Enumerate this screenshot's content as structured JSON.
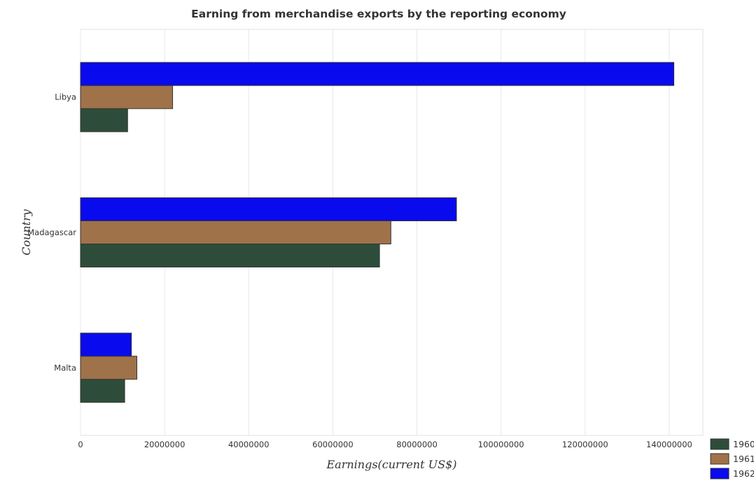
{
  "chart_data": {
    "type": "bar",
    "orientation": "horizontal",
    "title": "Earning from merchandise exports by the reporting economy",
    "xlabel": "Earnings(current US$)",
    "ylabel": "Country",
    "categories": [
      "Libya",
      "Madagascar",
      "Malta"
    ],
    "series": [
      {
        "name": "1960",
        "color": "#2d4d3a",
        "values": [
          11200000,
          71100000,
          10500000
        ]
      },
      {
        "name": "1961",
        "color": "#a0724a",
        "values": [
          21900000,
          73800000,
          13400000
        ]
      },
      {
        "name": "1962",
        "color": "#0a0aee",
        "values": [
          141100000,
          89400000,
          12100000
        ]
      }
    ],
    "xlim": [
      0,
      148000000
    ],
    "xticks": [
      0,
      20000000,
      40000000,
      60000000,
      80000000,
      100000000,
      120000000,
      140000000
    ],
    "xtick_labels": [
      "0",
      "20000000",
      "40000000",
      "60000000",
      "80000000",
      "100000000",
      "120000000",
      "140000000"
    ],
    "grid": true,
    "legend_position": "bottom-right"
  }
}
